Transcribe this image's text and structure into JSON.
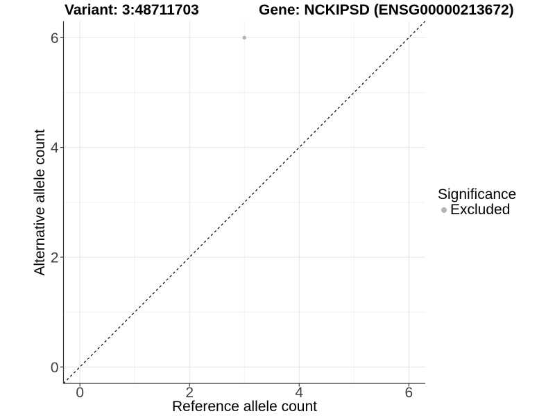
{
  "header": {
    "title_left": "Variant: 3:48711703",
    "title_right": "Gene: NCKIPSD (ENSG00000213672)"
  },
  "chart_data": {
    "type": "scatter",
    "title": "Variant: 3:48711703 — Gene: NCKIPSD (ENSG00000213672)",
    "xlabel": "Reference allele count",
    "ylabel": "Alternative allele count",
    "xlim": [
      -0.3,
      6.3
    ],
    "ylim": [
      -0.3,
      6.3
    ],
    "x_ticks": [
      0,
      2,
      4,
      6
    ],
    "y_ticks": [
      0,
      2,
      4,
      6
    ],
    "x_minor_ticks": [
      1,
      3,
      5
    ],
    "y_minor_ticks": [
      1,
      3,
      5
    ],
    "grid": "on",
    "reference_line": {
      "kind": "y=x identity",
      "style": "dashed",
      "color": "#000000"
    },
    "series": [
      {
        "name": "Excluded",
        "color": "#b4b4b4",
        "marker": "circle",
        "points": [
          [
            3,
            6
          ]
        ]
      }
    ],
    "legend": {
      "title": "Significance",
      "position": "right",
      "items": [
        {
          "label": "Excluded",
          "color": "#b4b4b4"
        }
      ]
    }
  },
  "styles": {
    "grid_major_color": "#e5e5e5",
    "grid_minor_color": "#f1f1f1",
    "axis_line_color": "#333333",
    "tick_label_color": "#404040",
    "background": "#ffffff"
  }
}
